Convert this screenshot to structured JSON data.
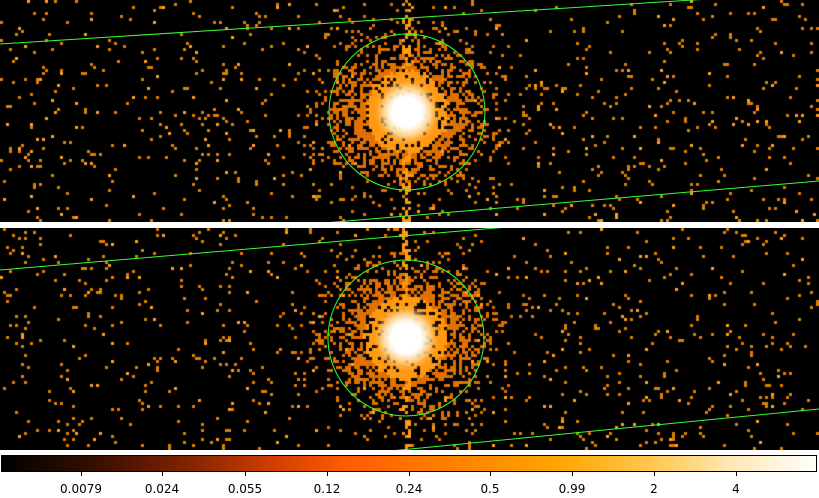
{
  "image": {
    "panels": [
      {
        "name": "top",
        "source_x": 407,
        "source_y": 112
      },
      {
        "name": "bottom",
        "source_x": 406,
        "source_y": 337
      }
    ],
    "colors": {
      "background": "#000000",
      "region": "#33ff33",
      "separator": "#ffffff"
    }
  },
  "colorbar": {
    "colormap": "heat",
    "tick_labels": [
      "0.0079",
      "0.024",
      "0.055",
      "0.12",
      "0.24",
      "0.5",
      "0.99",
      "2",
      "4"
    ]
  }
}
